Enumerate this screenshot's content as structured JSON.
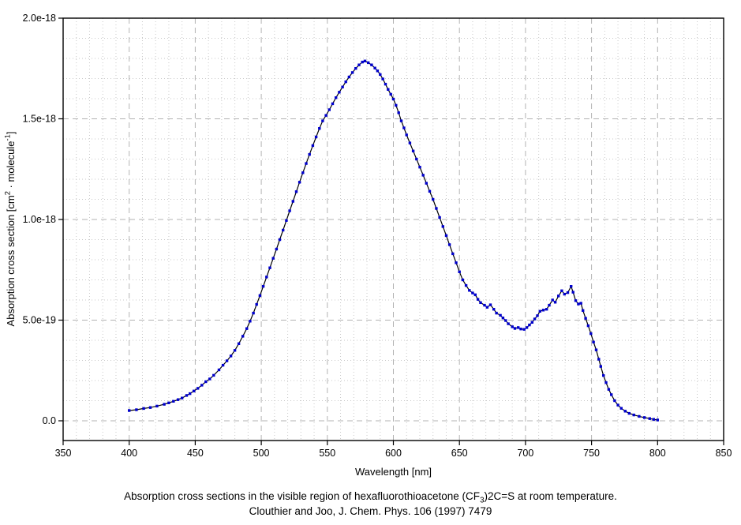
{
  "figure": {
    "xlabel": "Wavelength [nm]",
    "ylabel_parts": [
      {
        "t": "Absorption cross section [cm"
      },
      {
        "t": "2",
        "sup": true
      },
      {
        "t": " · molecule"
      },
      {
        "t": "-1",
        "sup": true
      },
      {
        "t": "]"
      }
    ],
    "caption_line1_parts": [
      {
        "t": "Absorption cross sections in the visible region of hexafluorothioacetone (CF"
      },
      {
        "t": "3",
        "sub": true
      },
      {
        "t": ")2C=S at room temperature."
      }
    ],
    "caption_line2": "Clouthier and Joo, J. Chem. Phys. 106 (1997) 7479"
  },
  "chart_data": {
    "type": "line",
    "title": "",
    "xlabel": "Wavelength [nm]",
    "ylabel": "Absorption cross section [cm^2 * molecule^-1]",
    "x_unit": "nm",
    "y_value_unit": "1e-18 cm^2 / molecule",
    "xlim": [
      350,
      850
    ],
    "ylim_1e18": [
      -0.098,
      2.0
    ],
    "x_major_step": 50,
    "x_minor_step": 10,
    "y_major_step_1e18": 0.5,
    "y_minor_step_1e18": 0.1,
    "grid": true,
    "legend_position": "none",
    "x_tick_labels": [
      "350",
      "400",
      "450",
      "500",
      "550",
      "600",
      "650",
      "700",
      "750",
      "800",
      "850"
    ],
    "y_ticks": [
      {
        "v": 0.0,
        "label": "0.0"
      },
      {
        "v": 0.5,
        "label": "5.0e-19"
      },
      {
        "v": 1.0,
        "label": "1.0e-18"
      },
      {
        "v": 1.5,
        "label": "1.5e-18"
      },
      {
        "v": 2.0,
        "label": "2.0e-18"
      }
    ],
    "colors": {
      "marker": "#0000cc",
      "line": "#000000",
      "axis": "#000000",
      "grid_major": "#b3b3b3",
      "grid_minor": "#c9c9c9",
      "background": "#ffffff"
    },
    "series": [
      {
        "name": "absorption-cross-section",
        "marker": "square",
        "points_x_nm_y_1e18": [
          [
            400,
            0.051
          ],
          [
            405.5,
            0.055
          ],
          [
            411,
            0.061
          ],
          [
            416,
            0.066
          ],
          [
            421,
            0.073
          ],
          [
            426.5,
            0.082
          ],
          [
            430,
            0.089
          ],
          [
            433.5,
            0.097
          ],
          [
            437,
            0.105
          ],
          [
            440,
            0.113
          ],
          [
            443.5,
            0.126
          ],
          [
            446,
            0.135
          ],
          [
            449,
            0.148
          ],
          [
            452,
            0.161
          ],
          [
            455,
            0.177
          ],
          [
            458,
            0.194
          ],
          [
            461,
            0.208
          ],
          [
            464,
            0.226
          ],
          [
            468,
            0.253
          ],
          [
            471,
            0.276
          ],
          [
            474,
            0.298
          ],
          [
            477,
            0.322
          ],
          [
            480,
            0.35
          ],
          [
            483,
            0.383
          ],
          [
            486,
            0.42
          ],
          [
            489,
            0.458
          ],
          [
            491.5,
            0.495
          ],
          [
            494,
            0.535
          ],
          [
            496.5,
            0.578
          ],
          [
            499,
            0.622
          ],
          [
            501.5,
            0.668
          ],
          [
            504,
            0.714
          ],
          [
            506.5,
            0.76
          ],
          [
            509,
            0.807
          ],
          [
            511.5,
            0.853
          ],
          [
            514,
            0.9
          ],
          [
            516.5,
            0.947
          ],
          [
            519,
            0.995
          ],
          [
            521.5,
            1.043
          ],
          [
            524,
            1.09
          ],
          [
            526.5,
            1.138
          ],
          [
            529,
            1.185
          ],
          [
            531.5,
            1.232
          ],
          [
            534,
            1.278
          ],
          [
            536.5,
            1.323
          ],
          [
            539,
            1.367
          ],
          [
            541.5,
            1.41
          ],
          [
            544,
            1.452
          ],
          [
            546.5,
            1.49
          ],
          [
            549,
            1.517
          ],
          [
            551.5,
            1.545
          ],
          [
            554,
            1.575
          ],
          [
            556.5,
            1.605
          ],
          [
            559,
            1.632
          ],
          [
            561.5,
            1.658
          ],
          [
            564,
            1.684
          ],
          [
            566.5,
            1.708
          ],
          [
            569,
            1.73
          ],
          [
            571.5,
            1.75
          ],
          [
            574,
            1.768
          ],
          [
            576.5,
            1.782
          ],
          [
            578.5,
            1.787
          ],
          [
            581,
            1.779
          ],
          [
            583.5,
            1.768
          ],
          [
            586,
            1.752
          ],
          [
            588,
            1.738
          ],
          [
            590,
            1.72
          ],
          [
            592,
            1.698
          ],
          [
            594,
            1.672
          ],
          [
            596,
            1.646
          ],
          [
            598,
            1.622
          ],
          [
            600,
            1.598
          ],
          [
            602,
            1.567
          ],
          [
            604,
            1.53
          ],
          [
            606,
            1.49
          ],
          [
            608,
            1.455
          ],
          [
            610,
            1.42
          ],
          [
            612.5,
            1.38
          ],
          [
            615,
            1.34
          ],
          [
            617.5,
            1.3
          ],
          [
            620,
            1.26
          ],
          [
            622.5,
            1.22
          ],
          [
            625,
            1.18
          ],
          [
            627.5,
            1.14
          ],
          [
            630,
            1.1
          ],
          [
            632.5,
            1.055
          ],
          [
            635,
            1.01
          ],
          [
            637.5,
            0.965
          ],
          [
            640,
            0.92
          ],
          [
            642.5,
            0.875
          ],
          [
            645,
            0.83
          ],
          [
            647.5,
            0.785
          ],
          [
            650,
            0.74
          ],
          [
            652.5,
            0.7
          ],
          [
            655,
            0.672
          ],
          [
            657.5,
            0.648
          ],
          [
            660,
            0.635
          ],
          [
            662,
            0.626
          ],
          [
            664,
            0.603
          ],
          [
            666,
            0.587
          ],
          [
            669,
            0.574
          ],
          [
            671,
            0.564
          ],
          [
            673.5,
            0.576
          ],
          [
            676,
            0.554
          ],
          [
            678,
            0.535
          ],
          [
            681,
            0.524
          ],
          [
            683,
            0.511
          ],
          [
            685,
            0.498
          ],
          [
            687,
            0.482
          ],
          [
            690,
            0.467
          ],
          [
            692,
            0.459
          ],
          [
            694.5,
            0.463
          ],
          [
            696.5,
            0.456
          ],
          [
            699,
            0.454
          ],
          [
            701,
            0.463
          ],
          [
            703,
            0.476
          ],
          [
            705,
            0.489
          ],
          [
            707,
            0.506
          ],
          [
            709,
            0.522
          ],
          [
            711,
            0.544
          ],
          [
            713.5,
            0.55
          ],
          [
            716,
            0.554
          ],
          [
            718,
            0.574
          ],
          [
            720.5,
            0.6
          ],
          [
            722.5,
            0.589
          ],
          [
            725,
            0.62
          ],
          [
            727.5,
            0.646
          ],
          [
            729.5,
            0.629
          ],
          [
            732,
            0.637
          ],
          [
            734.5,
            0.668
          ],
          [
            736,
            0.639
          ],
          [
            738,
            0.597
          ],
          [
            740,
            0.58
          ],
          [
            742,
            0.584
          ],
          [
            743.5,
            0.548
          ],
          [
            745.5,
            0.509
          ],
          [
            747.5,
            0.472
          ],
          [
            749.5,
            0.433
          ],
          [
            751.5,
            0.391
          ],
          [
            753.5,
            0.352
          ],
          [
            755.5,
            0.306
          ],
          [
            757,
            0.27
          ],
          [
            759,
            0.225
          ],
          [
            761,
            0.19
          ],
          [
            763,
            0.156
          ],
          [
            765,
            0.13
          ],
          [
            767.5,
            0.1
          ],
          [
            770,
            0.078
          ],
          [
            772.5,
            0.062
          ],
          [
            775.5,
            0.048
          ],
          [
            778.5,
            0.037
          ],
          [
            782,
            0.029
          ],
          [
            786,
            0.022
          ],
          [
            790,
            0.016
          ],
          [
            794,
            0.011
          ],
          [
            797,
            0.007
          ],
          [
            800,
            0.004
          ]
        ]
      }
    ]
  }
}
